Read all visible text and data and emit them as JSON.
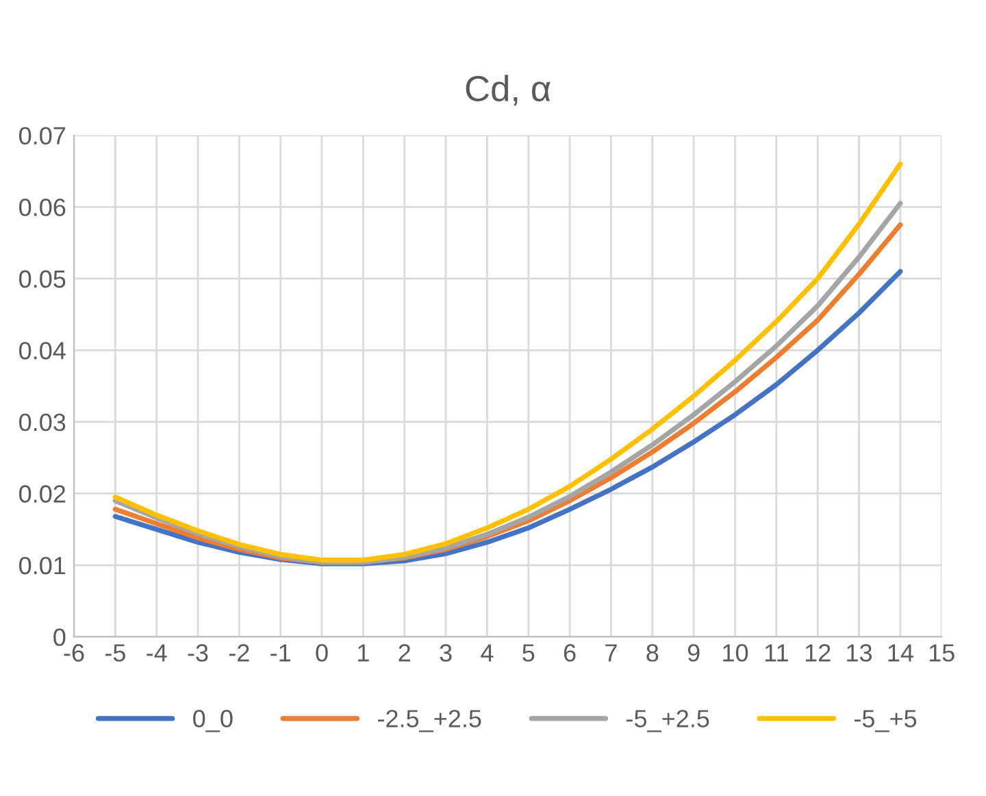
{
  "chart_data": {
    "type": "line",
    "title": "Cd, α",
    "x": [
      -5,
      -4,
      -3,
      -2,
      -1,
      0,
      1,
      2,
      3,
      4,
      5,
      6,
      7,
      8,
      9,
      10,
      11,
      12,
      13,
      14
    ],
    "series": [
      {
        "name": "0_0",
        "color": "#4472c4",
        "values": [
          0.0168,
          0.015,
          0.0132,
          0.0118,
          0.0108,
          0.0102,
          0.0102,
          0.0106,
          0.0116,
          0.0132,
          0.0152,
          0.0178,
          0.0206,
          0.0237,
          0.0272,
          0.031,
          0.0352,
          0.04,
          0.0452,
          0.051
        ]
      },
      {
        "name": "-2.5_+2.5",
        "color": "#ed7d31",
        "values": [
          0.0178,
          0.0158,
          0.0138,
          0.0122,
          0.011,
          0.0104,
          0.0104,
          0.011,
          0.0122,
          0.014,
          0.0162,
          0.019,
          0.0222,
          0.0258,
          0.0298,
          0.0342,
          0.039,
          0.0442,
          0.0506,
          0.0575
        ]
      },
      {
        "name": "-5_+2.5",
        "color": "#a5a5a5",
        "values": [
          0.019,
          0.0166,
          0.0144,
          0.0126,
          0.0112,
          0.0104,
          0.0104,
          0.0111,
          0.0124,
          0.0143,
          0.0167,
          0.0196,
          0.023,
          0.0268,
          0.031,
          0.0356,
          0.0406,
          0.0462,
          0.053,
          0.0605
        ]
      },
      {
        "name": "-5_+5",
        "color": "#ffc000",
        "values": [
          0.0195,
          0.017,
          0.0148,
          0.0129,
          0.0115,
          0.0107,
          0.0107,
          0.0115,
          0.013,
          0.0152,
          0.0178,
          0.021,
          0.0248,
          0.029,
          0.0336,
          0.0386,
          0.044,
          0.05,
          0.0576,
          0.066
        ]
      }
    ],
    "xlim": [
      -6,
      15
    ],
    "xticks": [
      -6,
      -5,
      -4,
      -3,
      -2,
      -1,
      0,
      1,
      2,
      3,
      4,
      5,
      6,
      7,
      8,
      9,
      10,
      11,
      12,
      13,
      14,
      15
    ],
    "ylim": [
      0,
      0.07
    ],
    "yticks": [
      0,
      0.01,
      0.02,
      0.03,
      0.04,
      0.05,
      0.06,
      0.07
    ],
    "grid": true,
    "legend": "bottom",
    "marker": "none",
    "line_style": "solid"
  }
}
